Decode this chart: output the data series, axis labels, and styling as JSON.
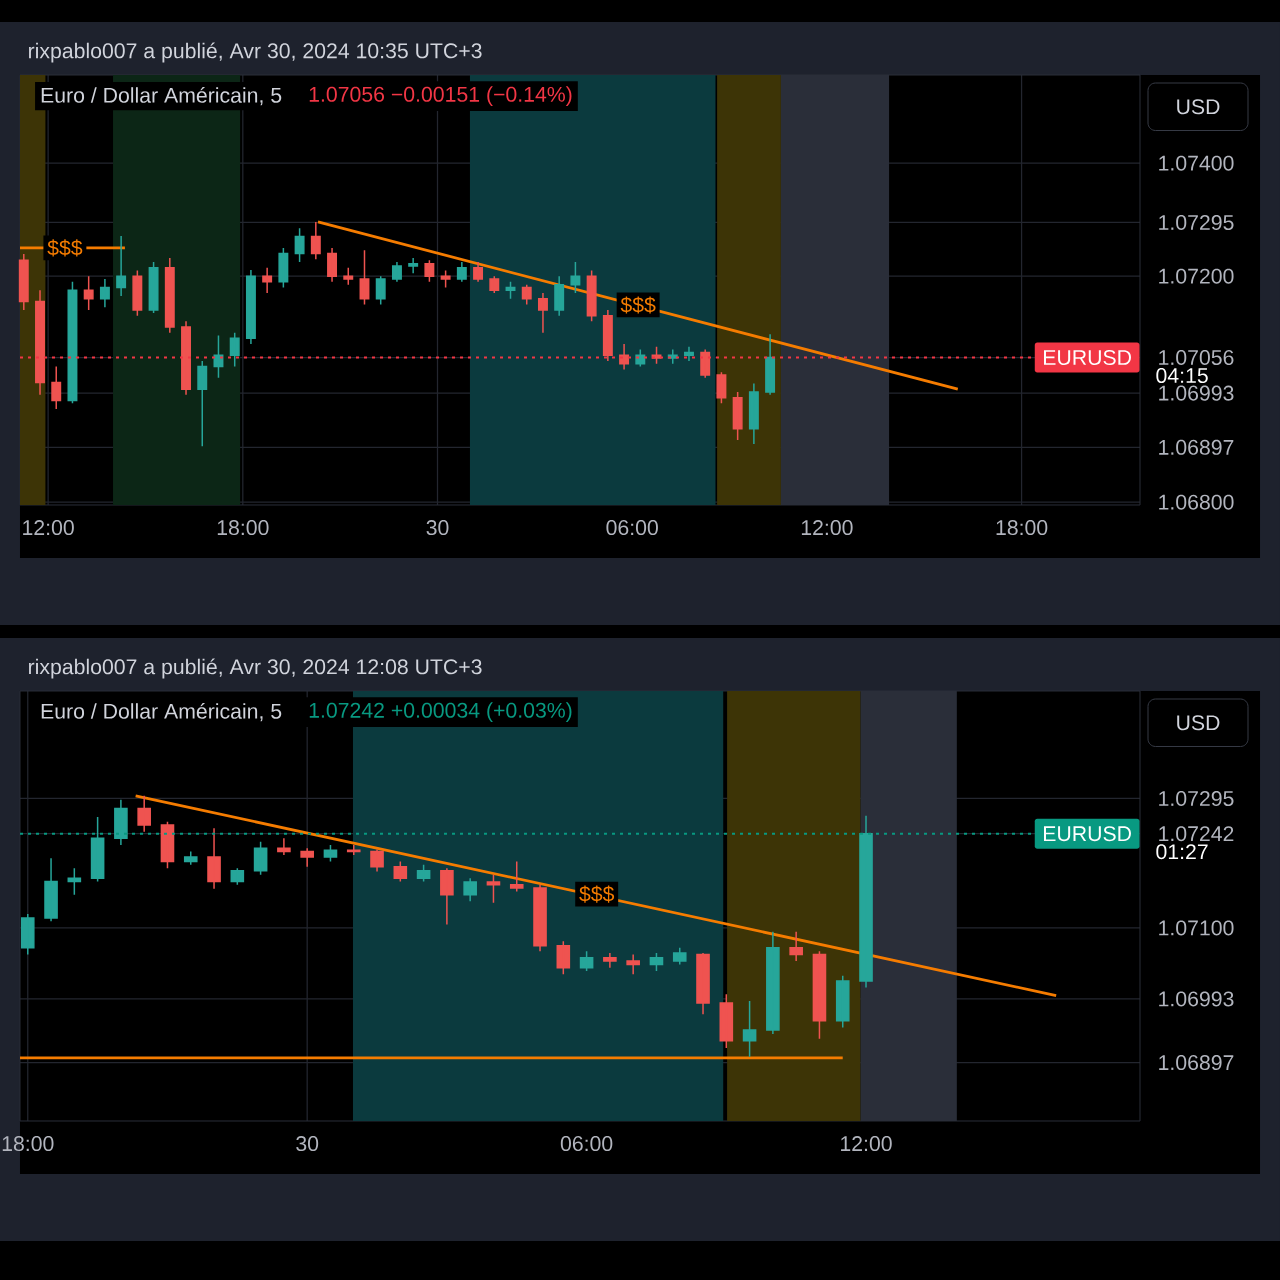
{
  "chart_data": [
    {
      "type": "candlestick",
      "title": "Euro / Dollar Américain, 5",
      "subtitle": "1.07056  −0.00151 (−0.14%)",
      "ylabel": "USD",
      "annotations": [
        "rixpablo007 a publié, Avr 30, 2024 10:35 UTC+3",
        "04:15",
        {
          "text": "$$$",
          "x": "2024-04-29T12:31",
          "y": 1.0725
        },
        {
          "text": "$$$",
          "x": "2024-04-30T06:11",
          "y": 1.07149
        }
      ],
      "x": [
        "2024-04-29T11:15",
        "2024-04-29T11:45",
        "2024-04-29T12:15",
        "2024-04-29T12:45",
        "2024-04-29T13:15",
        "2024-04-29T13:45",
        "2024-04-29T14:15",
        "2024-04-29T14:45",
        "2024-04-29T15:15",
        "2024-04-29T15:45",
        "2024-04-29T16:15",
        "2024-04-29T16:45",
        "2024-04-29T17:15",
        "2024-04-29T17:45",
        "2024-04-29T18:15",
        "2024-04-29T18:45",
        "2024-04-29T19:15",
        "2024-04-29T19:45",
        "2024-04-29T20:15",
        "2024-04-29T20:45",
        "2024-04-29T21:15",
        "2024-04-29T21:45",
        "2024-04-29T22:15",
        "2024-04-29T22:45",
        "2024-04-29T23:15",
        "2024-04-29T23:45",
        "2024-04-30T00:15",
        "2024-04-30T00:45",
        "2024-04-30T01:15",
        "2024-04-30T01:45",
        "2024-04-30T02:15",
        "2024-04-30T02:45",
        "2024-04-30T03:15",
        "2024-04-30T03:45",
        "2024-04-30T04:15",
        "2024-04-30T04:45",
        "2024-04-30T05:15",
        "2024-04-30T05:45",
        "2024-04-30T06:15",
        "2024-04-30T06:45",
        "2024-04-30T07:15",
        "2024-04-30T07:45",
        "2024-04-30T08:15",
        "2024-04-30T08:45",
        "2024-04-30T09:15",
        "2024-04-30T09:45",
        "2024-04-30T10:15"
      ],
      "ohlc": [
        [
          1.07228,
          1.07239,
          1.0714,
          1.07155
        ],
        [
          1.07155,
          1.07175,
          1.0699,
          1.07012
        ],
        [
          1.07012,
          1.0704,
          1.06965,
          1.0698
        ],
        [
          1.0698,
          1.0719,
          1.06975,
          1.07175
        ],
        [
          1.07175,
          1.072,
          1.0714,
          1.0716
        ],
        [
          1.0716,
          1.07195,
          1.07145,
          1.0718
        ],
        [
          1.0718,
          1.07271,
          1.07165,
          1.072
        ],
        [
          1.072,
          1.0721,
          1.0713,
          1.0714
        ],
        [
          1.0714,
          1.07225,
          1.07135,
          1.07215
        ],
        [
          1.07215,
          1.07232,
          1.071,
          1.0711
        ],
        [
          1.0711,
          1.0712,
          1.0699,
          1.07
        ],
        [
          1.07,
          1.0705,
          1.06899,
          1.0704
        ],
        [
          1.0704,
          1.07095,
          1.0702,
          1.0706
        ],
        [
          1.0706,
          1.071,
          1.0704,
          1.0709
        ],
        [
          1.0709,
          1.07211,
          1.0708,
          1.072
        ],
        [
          1.072,
          1.07215,
          1.0717,
          1.0719
        ],
        [
          1.0719,
          1.0725,
          1.0718,
          1.0724
        ],
        [
          1.0724,
          1.07285,
          1.07225,
          1.0727
        ],
        [
          1.0727,
          1.07296,
          1.0723,
          1.0724
        ],
        [
          1.0724,
          1.0725,
          1.0719,
          1.072
        ],
        [
          1.072,
          1.07215,
          1.07185,
          1.07195
        ],
        [
          1.07195,
          1.07246,
          1.0715,
          1.0716
        ],
        [
          1.0716,
          1.072,
          1.0715,
          1.07195
        ],
        [
          1.07195,
          1.07225,
          1.0719,
          1.07218
        ],
        [
          1.07218,
          1.07232,
          1.07205,
          1.07222
        ],
        [
          1.07222,
          1.07228,
          1.0719,
          1.072
        ],
        [
          1.072,
          1.0721,
          1.0718,
          1.07195
        ],
        [
          1.07195,
          1.07225,
          1.0719,
          1.07215
        ],
        [
          1.07215,
          1.07225,
          1.0719,
          1.07195
        ],
        [
          1.07195,
          1.072,
          1.0717,
          1.07175
        ],
        [
          1.07175,
          1.0719,
          1.0716,
          1.0718
        ],
        [
          1.0718,
          1.07185,
          1.0715,
          1.0716
        ],
        [
          1.0716,
          1.0717,
          1.071,
          1.0714
        ],
        [
          1.0714,
          1.072,
          1.0713,
          1.07185
        ],
        [
          1.07185,
          1.07225,
          1.0717,
          1.072
        ],
        [
          1.072,
          1.0721,
          1.0712,
          1.0713
        ],
        [
          1.0713,
          1.0714,
          1.0705,
          1.0706
        ],
        [
          1.0706,
          1.0708,
          1.07035,
          1.07045
        ],
        [
          1.07045,
          1.0707,
          1.0704,
          1.0706
        ],
        [
          1.0706,
          1.07075,
          1.07045,
          1.07055
        ],
        [
          1.07055,
          1.0707,
          1.07045,
          1.0706
        ],
        [
          1.0706,
          1.07075,
          1.0705,
          1.07065
        ],
        [
          1.07065,
          1.0707,
          1.0702,
          1.07025
        ],
        [
          1.07025,
          1.0703,
          1.06975,
          1.06985
        ],
        [
          1.06985,
          1.06995,
          1.0691,
          1.0693
        ],
        [
          1.0693,
          1.0701,
          1.06903,
          1.06995
        ],
        [
          1.06995,
          1.07097,
          1.0699,
          1.07056
        ]
      ],
      "series": [
        {
          "type": "line",
          "color": "#f57c00",
          "x": [
            "2024-04-29T20:19",
            "2024-04-30T16:02"
          ],
          "values": [
            1.07296,
            1.07
          ]
        },
        {
          "type": "line",
          "color": "#f57c00",
          "x": [
            "2024-04-29T11:08",
            "2024-04-29T14:22"
          ],
          "values": [
            1.0725,
            1.0725
          ]
        }
      ],
      "xlim": [
        "2024-04-29T11:08",
        "2024-04-30T21:39"
      ],
      "ylim": [
        1.06795,
        1.07556
      ],
      "xticks": [
        {
          "value": "2024-04-29T12:00",
          "label": "12:00"
        },
        {
          "value": "2024-04-29T18:00",
          "label": "18:00"
        },
        {
          "value": "2024-04-30T00:00",
          "label": "30"
        },
        {
          "value": "2024-04-30T06:00",
          "label": "06:00"
        },
        {
          "value": "2024-04-30T12:00",
          "label": "12:00"
        },
        {
          "value": "2024-04-30T18:00",
          "label": "18:00"
        }
      ],
      "yticks": [
        {
          "value": 1.074,
          "label": "1.07400"
        },
        {
          "value": 1.07295,
          "label": "1.07295"
        },
        {
          "value": 1.072,
          "label": "1.07200"
        },
        {
          "value": 1.07056,
          "label": "1.07056"
        },
        {
          "value": 1.06993,
          "label": "1.06993"
        },
        {
          "value": 1.06897,
          "label": "1.06897"
        },
        {
          "value": 1.068,
          "label": "1.06800"
        }
      ],
      "grid": true,
      "ref_lines": [
        {
          "axis": "y",
          "value": 1.07056,
          "label": "EURUSD",
          "color": "#f23645",
          "line_style": "dotted"
        }
      ],
      "bands": [
        {
          "axis": "x",
          "from": "2024-04-29T11:08",
          "to": "2024-04-29T11:55",
          "color": "#3d3406"
        },
        {
          "axis": "x",
          "from": "2024-04-29T14:00",
          "to": "2024-04-29T17:55",
          "color": "#0c2616"
        },
        {
          "axis": "x",
          "from": "2024-04-30T01:00",
          "to": "2024-04-30T08:34",
          "color": "#0b3a3e"
        },
        {
          "axis": "x",
          "from": "2024-04-30T08:37",
          "to": "2024-04-30T10:35",
          "color": "#3d3406"
        },
        {
          "axis": "x",
          "from": "2024-04-30T10:35",
          "to": "2024-04-30T13:55",
          "color": "#2a2e39"
        }
      ]
    },
    {
      "type": "candlestick",
      "title": "Euro / Dollar Américain, 5",
      "subtitle": "1.07242  +0.00034 (+0.03%)",
      "ylabel": "USD",
      "annotations": [
        "rixpablo007 a publié, Avr 30, 2024 12:08 UTC+3",
        "01:27",
        {
          "text": "$$$",
          "x": "2024-04-30T06:13",
          "y": 1.07151
        }
      ],
      "x": [
        "2024-04-29T18:00",
        "2024-04-29T18:30",
        "2024-04-29T19:00",
        "2024-04-29T19:30",
        "2024-04-29T20:00",
        "2024-04-29T20:30",
        "2024-04-29T21:00",
        "2024-04-29T21:30",
        "2024-04-29T22:00",
        "2024-04-29T22:30",
        "2024-04-29T23:00",
        "2024-04-29T23:30",
        "2024-04-30T00:00",
        "2024-04-30T00:30",
        "2024-04-30T01:00",
        "2024-04-30T01:30",
        "2024-04-30T02:00",
        "2024-04-30T02:30",
        "2024-04-30T03:00",
        "2024-04-30T03:30",
        "2024-04-30T04:00",
        "2024-04-30T04:30",
        "2024-04-30T05:00",
        "2024-04-30T05:30",
        "2024-04-30T06:00",
        "2024-04-30T06:30",
        "2024-04-30T07:00",
        "2024-04-30T07:30",
        "2024-04-30T08:00",
        "2024-04-30T08:30",
        "2024-04-30T09:00",
        "2024-04-30T09:30",
        "2024-04-30T10:00",
        "2024-04-30T10:30",
        "2024-04-30T11:00",
        "2024-04-30T11:30",
        "2024-04-30T12:00"
      ],
      "ohlc": [
        [
          1.0707,
          1.07121,
          1.0706,
          1.07115
        ],
        [
          1.07115,
          1.07205,
          1.0711,
          1.0717
        ],
        [
          1.0717,
          1.0719,
          1.0715,
          1.07175
        ],
        [
          1.07175,
          1.07267,
          1.0717,
          1.07235
        ],
        [
          1.07235,
          1.07293,
          1.07225,
          1.0728
        ],
        [
          1.0728,
          1.07299,
          1.07245,
          1.07255
        ],
        [
          1.07255,
          1.0726,
          1.0719,
          1.072
        ],
        [
          1.072,
          1.07215,
          1.07195,
          1.07207
        ],
        [
          1.07207,
          1.0725,
          1.07159,
          1.0717
        ],
        [
          1.0717,
          1.0719,
          1.07165,
          1.07186
        ],
        [
          1.07186,
          1.0723,
          1.0718,
          1.0722
        ],
        [
          1.0722,
          1.07235,
          1.0721,
          1.07215
        ],
        [
          1.07215,
          1.0722,
          1.07192,
          1.07207
        ],
        [
          1.07207,
          1.07225,
          1.072,
          1.07217
        ],
        [
          1.07217,
          1.07225,
          1.0721,
          1.07215
        ],
        [
          1.07215,
          1.07218,
          1.07185,
          1.07192
        ],
        [
          1.07192,
          1.072,
          1.0717,
          1.07175
        ],
        [
          1.07175,
          1.07195,
          1.0717,
          1.07186
        ],
        [
          1.07186,
          1.0719,
          1.07105,
          1.0715
        ],
        [
          1.0715,
          1.07175,
          1.0714,
          1.07169
        ],
        [
          1.07169,
          1.0718,
          1.07138,
          1.07165
        ],
        [
          1.07165,
          1.072,
          1.07155,
          1.0716
        ],
        [
          1.0716,
          1.07165,
          1.07065,
          1.07073
        ],
        [
          1.07073,
          1.0708,
          1.0703,
          1.0704
        ],
        [
          1.0704,
          1.07065,
          1.07035,
          1.07055
        ],
        [
          1.07055,
          1.07062,
          1.0704,
          1.0705
        ],
        [
          1.0705,
          1.0706,
          1.0703,
          1.07045
        ],
        [
          1.07045,
          1.07062,
          1.07035,
          1.07055
        ],
        [
          1.0705,
          1.0707,
          1.07045,
          1.07062
        ],
        [
          1.0706,
          1.07062,
          1.0697,
          1.06987
        ],
        [
          1.06987,
          1.07,
          1.06919,
          1.0693
        ],
        [
          1.0693,
          1.0699,
          1.06906,
          1.06946
        ],
        [
          1.06946,
          1.07094,
          1.0694,
          1.0707
        ],
        [
          1.0707,
          1.07094,
          1.0705,
          1.0706
        ],
        [
          1.0706,
          1.07065,
          1.06933,
          1.0696
        ],
        [
          1.0696,
          1.07028,
          1.0695,
          1.0702
        ],
        [
          1.0702,
          1.07269,
          1.0701,
          1.07242
        ]
      ],
      "series": [
        {
          "type": "line",
          "color": "#f57c00",
          "x": [
            "2024-04-29T20:19",
            "2024-04-30T16:05"
          ],
          "values": [
            1.07299,
            1.06998
          ]
        },
        {
          "type": "line",
          "color": "#f57c00",
          "x": [
            "2024-04-29T17:50",
            "2024-04-30T11:30"
          ],
          "values": [
            1.06904,
            1.06904
          ]
        }
      ],
      "xlim": [
        "2024-04-29T17:50",
        "2024-04-30T17:53"
      ],
      "ylim": [
        1.06809,
        1.07457
      ],
      "xticks": [
        {
          "value": "2024-04-29T18:00",
          "label": "18:00"
        },
        {
          "value": "2024-04-30T00:00",
          "label": "30"
        },
        {
          "value": "2024-04-30T06:00",
          "label": "06:00"
        },
        {
          "value": "2024-04-30T12:00",
          "label": "12:00"
        }
      ],
      "yticks": [
        {
          "value": 1.07295,
          "label": "1.07295"
        },
        {
          "value": 1.07242,
          "label": "1.07242"
        },
        {
          "value": 1.071,
          "label": "1.07100"
        },
        {
          "value": 1.06993,
          "label": "1.06993"
        },
        {
          "value": 1.06897,
          "label": "1.06897"
        }
      ],
      "grid": true,
      "ref_lines": [
        {
          "axis": "y",
          "value": 1.07242,
          "label": "EURUSD",
          "color": "#089981",
          "line_style": "dotted"
        }
      ],
      "bands": [
        {
          "axis": "x",
          "from": "2024-04-30T00:59",
          "to": "2024-04-30T08:56",
          "color": "#0b3a3e"
        },
        {
          "axis": "x",
          "from": "2024-04-30T09:01",
          "to": "2024-04-30T11:53",
          "color": "#3d3406"
        },
        {
          "axis": "x",
          "from": "2024-04-30T11:53",
          "to": "2024-04-30T13:57",
          "color": "#2a2e39"
        }
      ]
    }
  ]
}
